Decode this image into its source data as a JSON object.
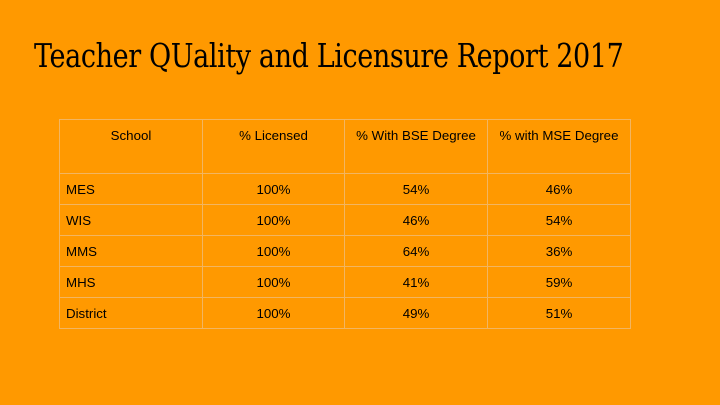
{
  "title": "Teacher QUality and Licensure Report 2017",
  "table": {
    "headers": [
      "School",
      "% Licensed",
      "% With BSE Degree",
      "% with MSE Degree"
    ],
    "rows": [
      {
        "school": "MES",
        "licensed": "100%",
        "bse": "54%",
        "mse": "46%"
      },
      {
        "school": "WIS",
        "licensed": "100%",
        "bse": "46%",
        "mse": "54%"
      },
      {
        "school": "MMS",
        "licensed": "100%",
        "bse": "64%",
        "mse": "36%"
      },
      {
        "school": "MHS",
        "licensed": "100%",
        "bse": "41%",
        "mse": "59%"
      },
      {
        "school": "District",
        "licensed": "100%",
        "bse": "49%",
        "mse": "51%"
      }
    ]
  },
  "colors": {
    "background": "#ff9900",
    "text": "#000000",
    "table_border": "#f2b561"
  }
}
